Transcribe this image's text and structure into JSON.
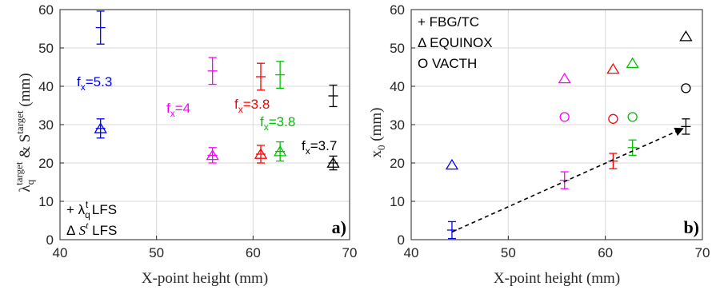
{
  "colors": {
    "FX53": "#0000ff",
    "FX4": "#ff00ff",
    "FX38A": "#ff0000",
    "FX38B": "#00c000",
    "FX37": "#000000",
    "grid": "#d9d9d9",
    "trend": "#000000"
  },
  "chart_data": [
    {
      "type": "scatter",
      "panel_label": "a)",
      "xlabel": "X-point height (mm)",
      "ylabel_parts": {
        "lambda": "λ",
        "sub": "q",
        "sup": "target",
        "mid": " & S",
        "sup2": "target",
        "unit": " (mm)"
      },
      "xlim": [
        40,
        70
      ],
      "ylim": [
        0,
        60
      ],
      "xticks": [
        "40",
        "50",
        "60",
        "70"
      ],
      "yticks": [
        "0",
        "10",
        "20",
        "30",
        "40",
        "50",
        "60"
      ],
      "grid": true,
      "legend": {
        "placement": "bottom-left",
        "entries": [
          {
            "marker": "+",
            "text_pre": " λ",
            "sub": "q",
            "sup": "t",
            "text_post": " LFS"
          },
          {
            "marker": "Δ",
            "text_pre": " S",
            "sup": "t",
            "text_post": " LFS"
          }
        ]
      },
      "series": [
        {
          "color_key": "FX53",
          "annotation": "f",
          "annotation_sub": "x",
          "annotation_val": "=5.3",
          "lambda": {
            "x": 44.2,
            "y": 55.3,
            "err": 4.3
          },
          "s": {
            "x": 44.2,
            "y": 29.0,
            "err": 2.5
          }
        },
        {
          "color_key": "FX4",
          "annotation": "f",
          "annotation_sub": "x",
          "annotation_val": "=4",
          "lambda": {
            "x": 55.8,
            "y": 44.0,
            "err": 3.5
          },
          "s": {
            "x": 55.8,
            "y": 22.0,
            "err": 2.0
          }
        },
        {
          "color_key": "FX38A",
          "annotation": "f",
          "annotation_sub": "x",
          "annotation_val": "=3.8",
          "lambda": {
            "x": 60.8,
            "y": 42.5,
            "err": 3.5
          },
          "s": {
            "x": 60.8,
            "y": 22.3,
            "err": 2.3
          }
        },
        {
          "color_key": "FX38B",
          "annotation": "f",
          "annotation_sub": "x",
          "annotation_val": "=3.8",
          "lambda": {
            "x": 62.8,
            "y": 43.0,
            "err": 3.5
          },
          "s": {
            "x": 62.8,
            "y": 23.0,
            "err": 2.5
          }
        },
        {
          "color_key": "FX37",
          "annotation": "f",
          "annotation_sub": "x",
          "annotation_val": "=3.7",
          "lambda": {
            "x": 68.3,
            "y": 37.5,
            "err": 2.8
          },
          "s": {
            "x": 68.3,
            "y": 20.0,
            "err": 1.8
          }
        }
      ]
    },
    {
      "type": "scatter",
      "panel_label": "b)",
      "xlabel": "X-point height (mm)",
      "ylabel_parts": {
        "main": "x",
        "sub": "0",
        "unit": " (mm)"
      },
      "xlim": [
        40,
        70
      ],
      "ylim": [
        0,
        60
      ],
      "xticks": [
        "40",
        "50",
        "60",
        "70"
      ],
      "yticks": [
        "0",
        "10",
        "20",
        "30",
        "40",
        "50",
        "60"
      ],
      "grid": true,
      "legend": {
        "placement": "top-left",
        "entries": [
          {
            "marker": "+",
            "text": " FBG/TC"
          },
          {
            "marker": "Δ",
            "text": " EQUINOX"
          },
          {
            "marker": "O",
            "text": " VACTH"
          }
        ]
      },
      "series": [
        {
          "color_key": "FX53",
          "fbg": {
            "x": 44.2,
            "y": 2.5,
            "err": 2.2
          },
          "equinox": {
            "x": 44.2,
            "y": 19.5
          }
        },
        {
          "color_key": "FX4",
          "fbg": {
            "x": 55.8,
            "y": 15.5,
            "err": 2.2
          },
          "equinox": {
            "x": 55.8,
            "y": 42.0
          },
          "vacth": {
            "x": 55.8,
            "y": 32.0
          }
        },
        {
          "color_key": "FX38A",
          "fbg": {
            "x": 60.8,
            "y": 20.5,
            "err": 2.0
          },
          "equinox": {
            "x": 60.8,
            "y": 44.5
          },
          "vacth": {
            "x": 60.8,
            "y": 31.5
          }
        },
        {
          "color_key": "FX38B",
          "fbg": {
            "x": 62.8,
            "y": 24.0,
            "err": 2.0
          },
          "equinox": {
            "x": 62.8,
            "y": 46.0
          },
          "vacth": {
            "x": 62.8,
            "y": 32.0
          }
        },
        {
          "color_key": "FX37",
          "fbg": {
            "x": 68.3,
            "y": 29.5,
            "err": 2.0
          },
          "equinox": {
            "x": 68.3,
            "y": 53.0
          },
          "vacth": {
            "x": 68.3,
            "y": 39.5
          }
        }
      ],
      "trend": {
        "from": [
          44.2,
          2.0
        ],
        "to": [
          68.0,
          29.0
        ],
        "style": "dashed-arrow"
      }
    }
  ]
}
